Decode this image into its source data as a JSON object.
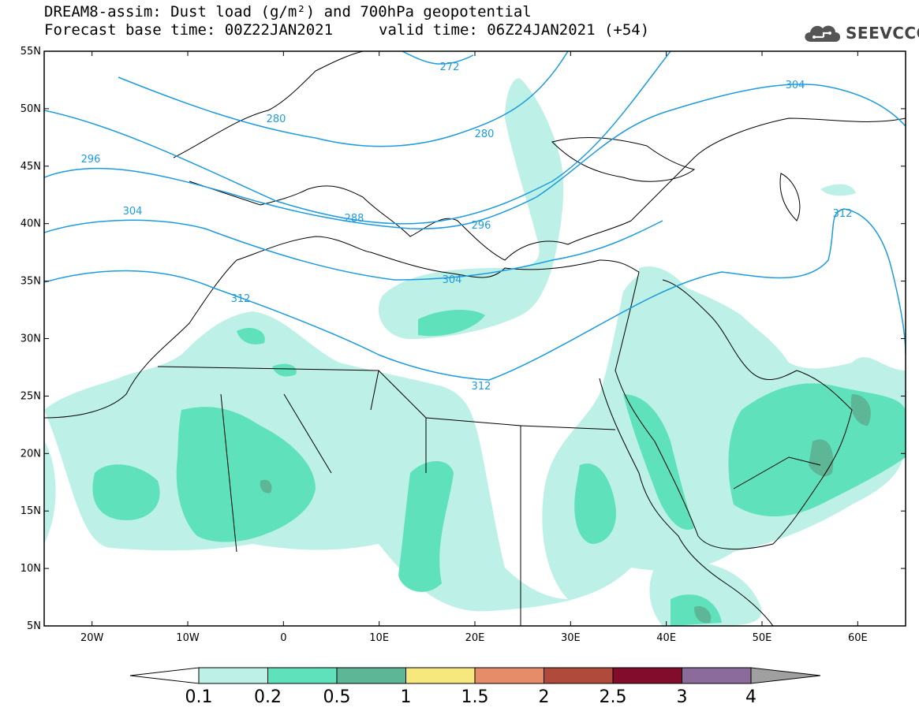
{
  "header": {
    "title_line1": "DREAM8-assim: Dust load (g/m²) and 700hPa geopotential",
    "title_base": "Forecast base time: 00Z22JAN2021",
    "title_valid": "valid time: 06Z24JAN2021 (+54)",
    "logo_text": "SEEVCCC"
  },
  "axes": {
    "lat_labels": [
      "55N",
      "50N",
      "45N",
      "40N",
      "35N",
      "30N",
      "25N",
      "20N",
      "15N",
      "10N",
      "5N"
    ],
    "lon_labels": [
      "20W",
      "10W",
      "0",
      "10E",
      "20E",
      "30E",
      "40E",
      "50E",
      "60E"
    ]
  },
  "contours": {
    "color": "#1d9be0",
    "labels": [
      "272",
      "280",
      "280",
      "296",
      "288",
      "296",
      "304",
      "304",
      "304",
      "312",
      "312",
      "312"
    ]
  },
  "colorbar": {
    "labels": [
      "0.1",
      "0.2",
      "0.5",
      "1",
      "1.5",
      "2",
      "2.5",
      "3",
      "4"
    ],
    "colors": [
      "#ffffff",
      "#bdf0e6",
      "#5fe2bc",
      "#5db696",
      "#f6e87c",
      "#e68c68",
      "#b04b3c",
      "#820c2c",
      "#8b6a9c",
      "#a0a0a0"
    ]
  }
}
